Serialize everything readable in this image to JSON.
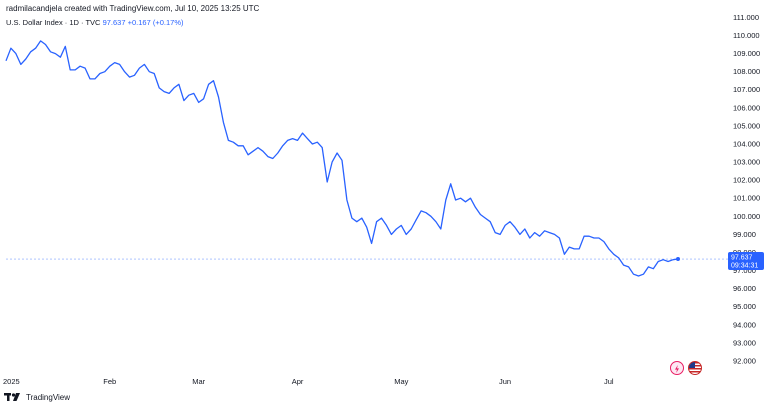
{
  "caption": "radmilacandjela created with TradingView.com, Jul 10, 2025 13:25 UTC",
  "legend": {
    "name": "U.S. Dollar Index · 1D · TVC",
    "value": "97.637",
    "change": "+0.167 (+0.17%)"
  },
  "brand": {
    "name": "TradingView"
  },
  "price_tag": {
    "value": "97.637",
    "time": "09:34:31"
  },
  "colors": {
    "line": "#2962ff",
    "background": "#ffffff",
    "tag": "#2962ff"
  },
  "icons": [
    "tradingview-logo-icon",
    "flash-icon",
    "us-flag-icon"
  ],
  "chart_data": {
    "type": "line",
    "series": [
      {
        "values": [
          108.6,
          109.3,
          109.0,
          108.4,
          108.7,
          109.1,
          109.3,
          109.7,
          109.5,
          109.1,
          109.0,
          108.8,
          109.4,
          108.1,
          108.1,
          108.3,
          108.2,
          107.6,
          107.6,
          107.9,
          108.0,
          108.3,
          108.5,
          108.4,
          108.0,
          107.7,
          107.8,
          108.2,
          108.4,
          108.0,
          107.9,
          107.1,
          106.9,
          106.8,
          107.1,
          107.3,
          106.4,
          106.7,
          106.8,
          106.3,
          106.5,
          107.3,
          107.5,
          106.6,
          105.2,
          104.2,
          104.1,
          103.9,
          103.9,
          103.4,
          103.6,
          103.8,
          103.6,
          103.3,
          103.2,
          103.5,
          103.9,
          104.2,
          104.3,
          104.2,
          104.6,
          104.3,
          104.0,
          104.1,
          103.8,
          101.9,
          103.0,
          103.5,
          103.1,
          100.9,
          99.9,
          99.7,
          99.9,
          99.4,
          98.5,
          99.7,
          99.9,
          99.5,
          99.0,
          99.3,
          99.5,
          99.0,
          99.3,
          99.8,
          100.3,
          100.2,
          100.0,
          99.7,
          99.3,
          100.9,
          101.8,
          100.9,
          101.0,
          100.8,
          101.0,
          100.5,
          100.1,
          99.9,
          99.7,
          99.1,
          99.0,
          99.5,
          99.7,
          99.4,
          99.0,
          99.3,
          98.8,
          99.1,
          98.9,
          99.2,
          99.1,
          99.0,
          98.8,
          97.9,
          98.3,
          98.2,
          98.2,
          98.9,
          98.9,
          98.8,
          98.8,
          98.6,
          98.2,
          97.9,
          97.7,
          97.3,
          97.2,
          96.8,
          96.7,
          96.8,
          97.2,
          97.1,
          97.5,
          97.6,
          97.5,
          97.6,
          97.64
        ]
      }
    ],
    "x_tick_labels": [
      "2025",
      "Feb",
      "Mar",
      "Apr",
      "May",
      "Jun",
      "Jul"
    ],
    "x_tick_positions": [
      0,
      21,
      39,
      59,
      80,
      101,
      122
    ],
    "y_tick_labels": [
      "92.000",
      "93.000",
      "94.000",
      "95.000",
      "96.000",
      "97.000",
      "98.000",
      "99.000",
      "100.000",
      "101.000",
      "102.000",
      "103.000",
      "104.000",
      "105.000",
      "106.000",
      "107.000",
      "108.000",
      "109.000",
      "110.000",
      "111.000"
    ],
    "ylim": [
      91.5,
      111.3
    ],
    "last_value": 97.637,
    "grid": false,
    "legend": "top-left"
  }
}
